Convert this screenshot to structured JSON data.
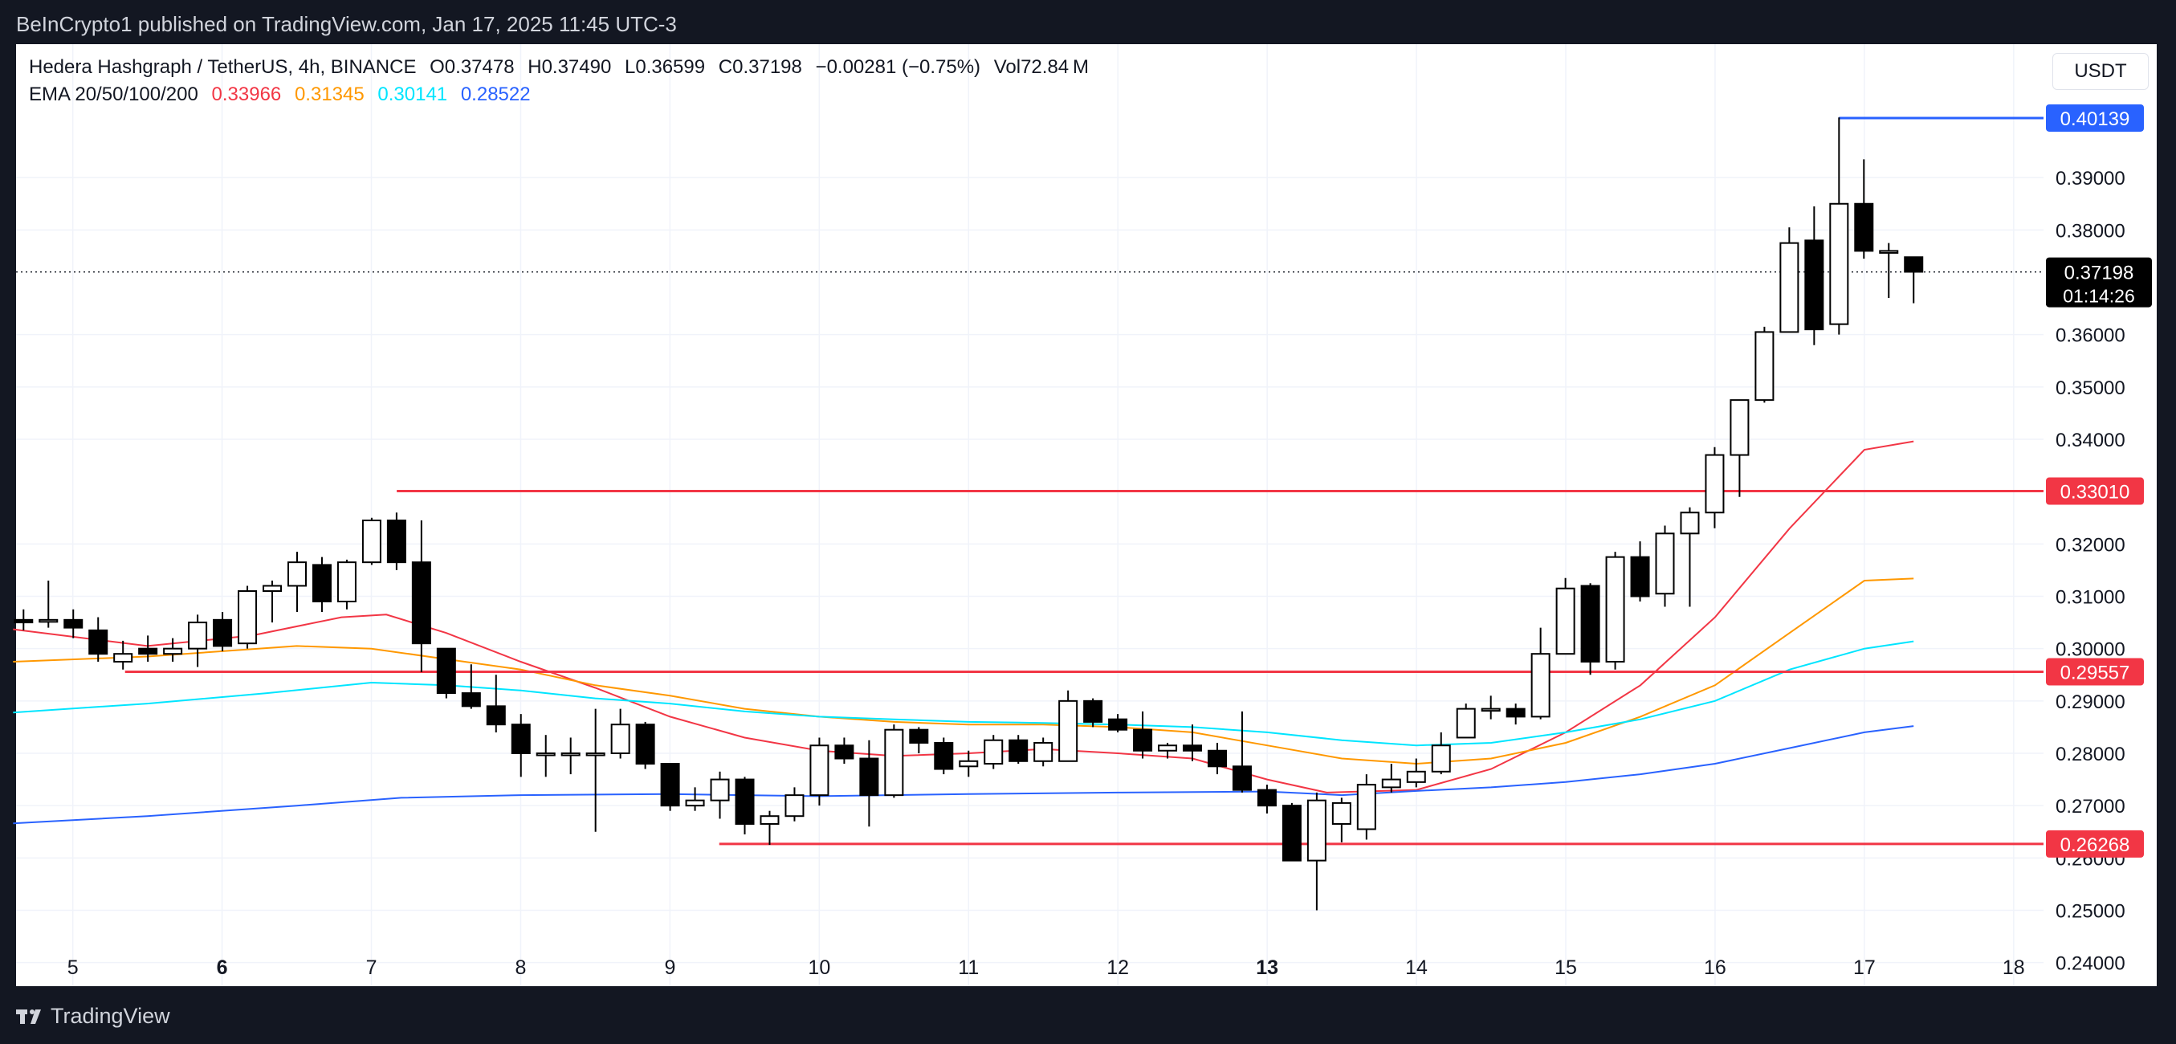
{
  "publisher_line": "BeInCrypto1 published on TradingView.com, Jan 17, 2025 11:45 UTC-3",
  "legend": {
    "symbol": "Hedera Hashgraph / TetherUS, 4h, BINANCE",
    "open": "O0.37478",
    "high": "H0.37490",
    "low": "L0.36599",
    "close": "C0.37198",
    "change": "−0.00281 (−0.75%)",
    "volume": "Vol72.84 M",
    "ema_label": "EMA 20/50/100/200",
    "ema20": "0.33966",
    "ema50": "0.31345",
    "ema100": "0.30141",
    "ema200": "0.28522"
  },
  "currency_button": "USDT",
  "branding": "TradingView",
  "colors": {
    "ema20": "#f23645",
    "ema50": "#ff9800",
    "ema100": "#00e5ff",
    "ema200": "#2962ff",
    "level": "#f23645",
    "high_level": "#2962ff",
    "candle_up_fill": "#ffffff",
    "candle_down_fill": "#000000"
  },
  "chart_data": {
    "type": "candlestick",
    "title": "",
    "xlabel": "",
    "ylabel": "",
    "ylim": [
      0.2355,
      0.4155
    ],
    "xlim": [
      4.62,
      18.2
    ],
    "x_ticks": [
      {
        "value": 5,
        "label": "5",
        "bold": false
      },
      {
        "value": 6,
        "label": "6",
        "bold": true
      },
      {
        "value": 7,
        "label": "7",
        "bold": false
      },
      {
        "value": 8,
        "label": "8",
        "bold": false
      },
      {
        "value": 9,
        "label": "9",
        "bold": false
      },
      {
        "value": 10,
        "label": "10",
        "bold": false
      },
      {
        "value": 11,
        "label": "11",
        "bold": false
      },
      {
        "value": 12,
        "label": "12",
        "bold": false
      },
      {
        "value": 13,
        "label": "13",
        "bold": true
      },
      {
        "value": 14,
        "label": "14",
        "bold": false
      },
      {
        "value": 15,
        "label": "15",
        "bold": false
      },
      {
        "value": 16,
        "label": "16",
        "bold": false
      },
      {
        "value": 17,
        "label": "17",
        "bold": false
      },
      {
        "value": 18,
        "label": "18",
        "bold": false
      }
    ],
    "y_ticks": [
      "0.39000",
      "0.38000",
      "0.36000",
      "0.35000",
      "0.34000",
      "0.32000",
      "0.31000",
      "0.30000",
      "0.29000",
      "0.28000",
      "0.27000",
      "0.26000",
      "0.25000",
      "0.24000"
    ],
    "candles": [
      {
        "o": 0.3055,
        "h": 0.3075,
        "l": 0.3035,
        "c": 0.305
      },
      {
        "o": 0.3055,
        "h": 0.313,
        "l": 0.304,
        "c": 0.3055
      },
      {
        "o": 0.3055,
        "h": 0.3075,
        "l": 0.302,
        "c": 0.304
      },
      {
        "o": 0.3035,
        "h": 0.306,
        "l": 0.2975,
        "c": 0.299
      },
      {
        "o": 0.2975,
        "h": 0.3015,
        "l": 0.296,
        "c": 0.299
      },
      {
        "o": 0.3,
        "h": 0.3025,
        "l": 0.2975,
        "c": 0.299
      },
      {
        "o": 0.299,
        "h": 0.302,
        "l": 0.2975,
        "c": 0.3
      },
      {
        "o": 0.3,
        "h": 0.3065,
        "l": 0.2965,
        "c": 0.305
      },
      {
        "o": 0.3055,
        "h": 0.307,
        "l": 0.2995,
        "c": 0.3005
      },
      {
        "o": 0.301,
        "h": 0.312,
        "l": 0.3,
        "c": 0.311
      },
      {
        "o": 0.311,
        "h": 0.313,
        "l": 0.305,
        "c": 0.312
      },
      {
        "o": 0.312,
        "h": 0.3185,
        "l": 0.307,
        "c": 0.3165
      },
      {
        "o": 0.316,
        "h": 0.3175,
        "l": 0.307,
        "c": 0.309
      },
      {
        "o": 0.309,
        "h": 0.317,
        "l": 0.3075,
        "c": 0.3165
      },
      {
        "o": 0.3165,
        "h": 0.325,
        "l": 0.316,
        "c": 0.3245
      },
      {
        "o": 0.3245,
        "h": 0.326,
        "l": 0.315,
        "c": 0.3165
      },
      {
        "o": 0.3165,
        "h": 0.3245,
        "l": 0.2955,
        "c": 0.301
      },
      {
        "o": 0.3,
        "h": 0.3,
        "l": 0.2905,
        "c": 0.2915
      },
      {
        "o": 0.2915,
        "h": 0.297,
        "l": 0.2885,
        "c": 0.289
      },
      {
        "o": 0.289,
        "h": 0.295,
        "l": 0.284,
        "c": 0.2855
      },
      {
        "o": 0.2855,
        "h": 0.2875,
        "l": 0.2755,
        "c": 0.28
      },
      {
        "o": 0.28,
        "h": 0.2835,
        "l": 0.2755,
        "c": 0.28
      },
      {
        "o": 0.28,
        "h": 0.283,
        "l": 0.276,
        "c": 0.28
      },
      {
        "o": 0.28,
        "h": 0.2885,
        "l": 0.265,
        "c": 0.28
      },
      {
        "o": 0.28,
        "h": 0.2885,
        "l": 0.279,
        "c": 0.2855
      },
      {
        "o": 0.2855,
        "h": 0.286,
        "l": 0.277,
        "c": 0.278
      },
      {
        "o": 0.278,
        "h": 0.278,
        "l": 0.269,
        "c": 0.27
      },
      {
        "o": 0.27,
        "h": 0.2735,
        "l": 0.269,
        "c": 0.271
      },
      {
        "o": 0.271,
        "h": 0.2765,
        "l": 0.2675,
        "c": 0.275
      },
      {
        "o": 0.275,
        "h": 0.2755,
        "l": 0.2645,
        "c": 0.2665
      },
      {
        "o": 0.2665,
        "h": 0.269,
        "l": 0.2625,
        "c": 0.268
      },
      {
        "o": 0.268,
        "h": 0.2735,
        "l": 0.267,
        "c": 0.272
      },
      {
        "o": 0.272,
        "h": 0.283,
        "l": 0.27,
        "c": 0.2815
      },
      {
        "o": 0.2815,
        "h": 0.283,
        "l": 0.278,
        "c": 0.279
      },
      {
        "o": 0.279,
        "h": 0.2825,
        "l": 0.266,
        "c": 0.272
      },
      {
        "o": 0.272,
        "h": 0.2855,
        "l": 0.2715,
        "c": 0.2845
      },
      {
        "o": 0.2845,
        "h": 0.285,
        "l": 0.28,
        "c": 0.282
      },
      {
        "o": 0.282,
        "h": 0.283,
        "l": 0.276,
        "c": 0.277
      },
      {
        "o": 0.2775,
        "h": 0.2805,
        "l": 0.2755,
        "c": 0.2785
      },
      {
        "o": 0.278,
        "h": 0.2835,
        "l": 0.277,
        "c": 0.2825
      },
      {
        "o": 0.2825,
        "h": 0.2835,
        "l": 0.278,
        "c": 0.2785
      },
      {
        "o": 0.2785,
        "h": 0.283,
        "l": 0.2775,
        "c": 0.282
      },
      {
        "o": 0.2785,
        "h": 0.292,
        "l": 0.2785,
        "c": 0.29
      },
      {
        "o": 0.29,
        "h": 0.2905,
        "l": 0.285,
        "c": 0.286
      },
      {
        "o": 0.2865,
        "h": 0.2875,
        "l": 0.284,
        "c": 0.2845
      },
      {
        "o": 0.2845,
        "h": 0.288,
        "l": 0.279,
        "c": 0.2805
      },
      {
        "o": 0.2805,
        "h": 0.282,
        "l": 0.279,
        "c": 0.2815
      },
      {
        "o": 0.2815,
        "h": 0.2855,
        "l": 0.2785,
        "c": 0.2805
      },
      {
        "o": 0.2805,
        "h": 0.282,
        "l": 0.276,
        "c": 0.2775
      },
      {
        "o": 0.2775,
        "h": 0.288,
        "l": 0.2725,
        "c": 0.273
      },
      {
        "o": 0.273,
        "h": 0.274,
        "l": 0.2685,
        "c": 0.27
      },
      {
        "o": 0.27,
        "h": 0.2705,
        "l": 0.2595,
        "c": 0.2595
      },
      {
        "o": 0.2595,
        "h": 0.2725,
        "l": 0.25,
        "c": 0.271
      },
      {
        "o": 0.2665,
        "h": 0.2715,
        "l": 0.263,
        "c": 0.2705
      },
      {
        "o": 0.2655,
        "h": 0.276,
        "l": 0.2635,
        "c": 0.274
      },
      {
        "o": 0.2735,
        "h": 0.278,
        "l": 0.2725,
        "c": 0.275
      },
      {
        "o": 0.2745,
        "h": 0.279,
        "l": 0.2735,
        "c": 0.2765
      },
      {
        "o": 0.2765,
        "h": 0.284,
        "l": 0.276,
        "c": 0.2815
      },
      {
        "o": 0.283,
        "h": 0.2895,
        "l": 0.283,
        "c": 0.2885
      },
      {
        "o": 0.2885,
        "h": 0.291,
        "l": 0.2865,
        "c": 0.2885
      },
      {
        "o": 0.2885,
        "h": 0.2895,
        "l": 0.2855,
        "c": 0.287
      },
      {
        "o": 0.287,
        "h": 0.304,
        "l": 0.2865,
        "c": 0.299
      },
      {
        "o": 0.299,
        "h": 0.3135,
        "l": 0.299,
        "c": 0.3115
      },
      {
        "o": 0.312,
        "h": 0.3125,
        "l": 0.295,
        "c": 0.2975
      },
      {
        "o": 0.2975,
        "h": 0.3185,
        "l": 0.296,
        "c": 0.3175
      },
      {
        "o": 0.3175,
        "h": 0.3205,
        "l": 0.309,
        "c": 0.31
      },
      {
        "o": 0.3105,
        "h": 0.3235,
        "l": 0.308,
        "c": 0.322
      },
      {
        "o": 0.322,
        "h": 0.327,
        "l": 0.308,
        "c": 0.326
      },
      {
        "o": 0.326,
        "h": 0.3385,
        "l": 0.323,
        "c": 0.337
      },
      {
        "o": 0.337,
        "h": 0.3475,
        "l": 0.329,
        "c": 0.3475
      },
      {
        "o": 0.3475,
        "h": 0.3615,
        "l": 0.347,
        "c": 0.3605
      },
      {
        "o": 0.3605,
        "h": 0.3805,
        "l": 0.3605,
        "c": 0.3775
      },
      {
        "o": 0.378,
        "h": 0.3845,
        "l": 0.358,
        "c": 0.361
      },
      {
        "o": 0.362,
        "h": 0.4015,
        "l": 0.36,
        "c": 0.385
      },
      {
        "o": 0.385,
        "h": 0.3935,
        "l": 0.3745,
        "c": 0.376
      },
      {
        "o": 0.376,
        "h": 0.3775,
        "l": 0.367,
        "c": 0.376
      },
      {
        "o": 0.3748,
        "h": 0.3749,
        "l": 0.366,
        "c": 0.372
      }
    ],
    "ema_series": [
      {
        "name": "EMA 20",
        "color": "#f23645",
        "points": [
          [
            4.6,
            0.3037
          ],
          [
            5.5,
            0.3005
          ],
          [
            6.2,
            0.3025
          ],
          [
            6.8,
            0.306
          ],
          [
            7.1,
            0.3065
          ],
          [
            7.5,
            0.303
          ],
          [
            8,
            0.2975
          ],
          [
            8.5,
            0.2925
          ],
          [
            9,
            0.287
          ],
          [
            9.5,
            0.283
          ],
          [
            10,
            0.2805
          ],
          [
            10.5,
            0.2795
          ],
          [
            11,
            0.28
          ],
          [
            11.5,
            0.2808
          ],
          [
            12,
            0.28
          ],
          [
            12.5,
            0.279
          ],
          [
            13,
            0.275
          ],
          [
            13.4,
            0.2725
          ],
          [
            14,
            0.273
          ],
          [
            14.5,
            0.277
          ],
          [
            15,
            0.284
          ],
          [
            15.5,
            0.293
          ],
          [
            16,
            0.306
          ],
          [
            16.5,
            0.323
          ],
          [
            17,
            0.338
          ],
          [
            17.33,
            0.3396
          ]
        ]
      },
      {
        "name": "EMA 50",
        "color": "#ff9800",
        "points": [
          [
            4.6,
            0.2975
          ],
          [
            5.5,
            0.2985
          ],
          [
            6.5,
            0.3005
          ],
          [
            7,
            0.3
          ],
          [
            7.5,
            0.298
          ],
          [
            8,
            0.296
          ],
          [
            8.5,
            0.293
          ],
          [
            9,
            0.291
          ],
          [
            9.5,
            0.2885
          ],
          [
            10,
            0.287
          ],
          [
            10.5,
            0.286
          ],
          [
            11,
            0.2855
          ],
          [
            11.5,
            0.2855
          ],
          [
            12,
            0.285
          ],
          [
            12.5,
            0.284
          ],
          [
            13,
            0.2815
          ],
          [
            13.5,
            0.279
          ],
          [
            14,
            0.278
          ],
          [
            14.5,
            0.279
          ],
          [
            15,
            0.282
          ],
          [
            15.5,
            0.287
          ],
          [
            16,
            0.293
          ],
          [
            16.5,
            0.303
          ],
          [
            17,
            0.313
          ],
          [
            17.33,
            0.3134
          ]
        ]
      },
      {
        "name": "EMA 100",
        "color": "#00e5ff",
        "points": [
          [
            4.6,
            0.2878
          ],
          [
            5.5,
            0.2895
          ],
          [
            6.3,
            0.2915
          ],
          [
            7,
            0.2935
          ],
          [
            7.5,
            0.293
          ],
          [
            8,
            0.292
          ],
          [
            8.5,
            0.2905
          ],
          [
            9,
            0.2895
          ],
          [
            9.5,
            0.288
          ],
          [
            10,
            0.287
          ],
          [
            10.5,
            0.2865
          ],
          [
            11,
            0.286
          ],
          [
            11.5,
            0.2858
          ],
          [
            12,
            0.2855
          ],
          [
            12.5,
            0.285
          ],
          [
            13,
            0.284
          ],
          [
            13.5,
            0.2825
          ],
          [
            14,
            0.2815
          ],
          [
            14.5,
            0.282
          ],
          [
            15,
            0.284
          ],
          [
            15.5,
            0.2865
          ],
          [
            16,
            0.29
          ],
          [
            16.5,
            0.296
          ],
          [
            17,
            0.3
          ],
          [
            17.33,
            0.3014
          ]
        ]
      },
      {
        "name": "EMA 200",
        "color": "#2962ff",
        "points": [
          [
            4.6,
            0.2666
          ],
          [
            5.5,
            0.268
          ],
          [
            6.5,
            0.27
          ],
          [
            7.2,
            0.2715
          ],
          [
            8,
            0.272
          ],
          [
            9,
            0.2722
          ],
          [
            10,
            0.2718
          ],
          [
            11,
            0.2722
          ],
          [
            12,
            0.2725
          ],
          [
            13,
            0.2727
          ],
          [
            13.5,
            0.272
          ],
          [
            14,
            0.2728
          ],
          [
            14.5,
            0.2735
          ],
          [
            15,
            0.2745
          ],
          [
            15.5,
            0.276
          ],
          [
            16,
            0.278
          ],
          [
            16.5,
            0.281
          ],
          [
            17,
            0.284
          ],
          [
            17.33,
            0.2852
          ]
        ]
      }
    ],
    "levels": [
      {
        "price": 0.3301,
        "label": "0.33010",
        "x_start": 7.17,
        "color": "#f23645"
      },
      {
        "price": 0.29557,
        "label": "0.29557",
        "x_start": 5.35,
        "color": "#f23645"
      },
      {
        "price": 0.26268,
        "label": "0.26268",
        "x_start": 9.33,
        "color": "#f23645"
      },
      {
        "price": 0.40139,
        "label": "0.40139",
        "x_start": 16.83,
        "color": "#2962ff"
      }
    ],
    "current_price": {
      "price": 0.37198,
      "label": "0.37198",
      "countdown": "01:14:26"
    }
  }
}
